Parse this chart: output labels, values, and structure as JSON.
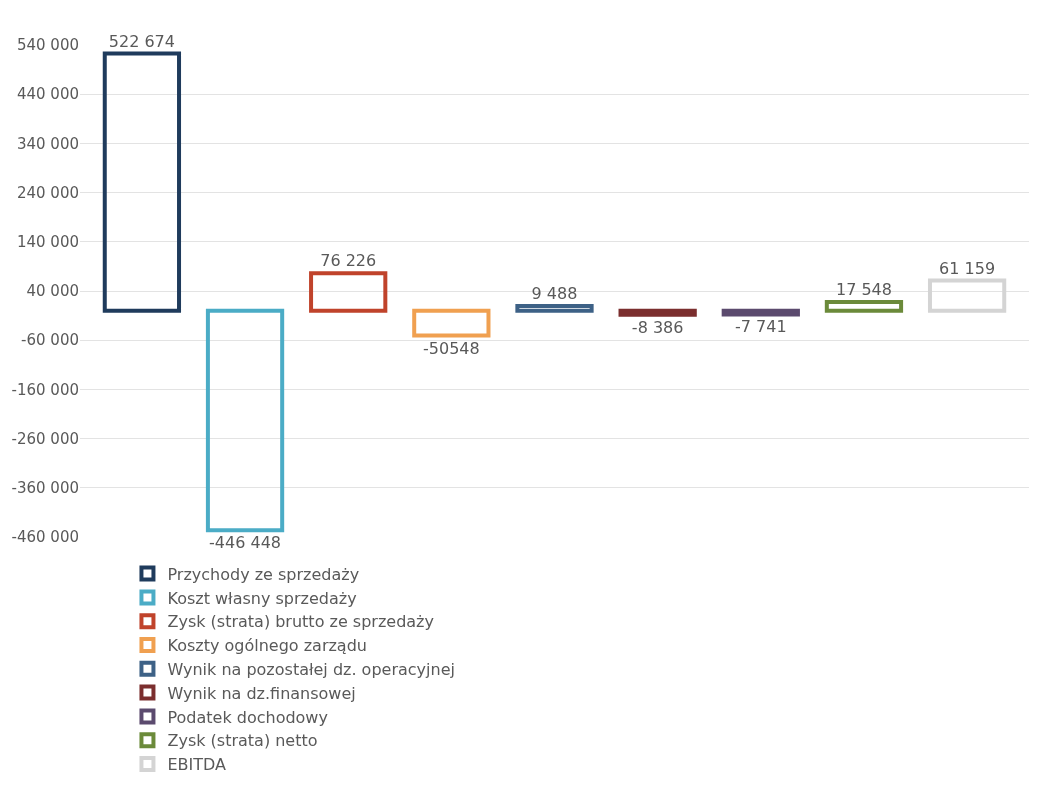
{
  "chart_data": {
    "type": "bar",
    "categories": [
      null,
      null,
      null,
      null,
      null,
      null,
      null,
      null,
      null
    ],
    "ylim": [
      -460000,
      540000
    ],
    "yticks": [
      {
        "value": -460000,
        "label": "-460 000"
      },
      {
        "value": -360000,
        "label": "-360 000"
      },
      {
        "value": -260000,
        "label": "-260 000"
      },
      {
        "value": -160000,
        "label": "-160 000"
      },
      {
        "value": -60000,
        "label": "-60 000"
      },
      {
        "value": 40000,
        "label": "40 000"
      },
      {
        "value": 140000,
        "label": "140 000"
      },
      {
        "value": 240000,
        "label": "240 000"
      },
      {
        "value": 340000,
        "label": "340 000"
      },
      {
        "value": 440000,
        "label": "440 000"
      },
      {
        "value": 540000,
        "label": "540 000"
      }
    ],
    "grid": "y",
    "legend": "bottom",
    "series": [
      {
        "name": "Przychody ze sprzedaży",
        "color": "#1f3b5c",
        "values": [
          522674,
          null,
          null,
          null,
          null,
          null,
          null,
          null,
          null
        ],
        "value_labels": [
          "522 674",
          null,
          null,
          null,
          null,
          null,
          null,
          null,
          null
        ]
      },
      {
        "name": "Koszt własny sprzedaży",
        "color": "#4bacc6",
        "values": [
          null,
          -446448,
          null,
          null,
          null,
          null,
          null,
          null,
          null
        ],
        "value_labels": [
          null,
          "-446 448",
          null,
          null,
          null,
          null,
          null,
          null,
          null
        ]
      },
      {
        "name": "Zysk (strata) brutto ze sprzedaży",
        "color": "#c0432b",
        "values": [
          null,
          null,
          76226,
          null,
          null,
          null,
          null,
          null,
          null
        ],
        "value_labels": [
          null,
          null,
          "76 226",
          null,
          null,
          null,
          null,
          null,
          null
        ]
      },
      {
        "name": "Koszty ogólnego zarządu",
        "color": "#f0a050",
        "values": [
          null,
          null,
          null,
          -50548,
          null,
          null,
          null,
          null,
          null
        ],
        "value_labels": [
          null,
          null,
          null,
          "-50548",
          null,
          null,
          null,
          null,
          null
        ]
      },
      {
        "name": "Wynik na pozostałej dz. operacyjnej",
        "color": "#3d6186",
        "values": [
          null,
          null,
          null,
          null,
          9488,
          null,
          null,
          null,
          null
        ],
        "value_labels": [
          null,
          null,
          null,
          null,
          "9 488",
          null,
          null,
          null,
          null
        ]
      },
      {
        "name": "Wynik na dz.finansowej",
        "color": "#7b2e2e",
        "values": [
          null,
          null,
          null,
          null,
          null,
          -8386,
          null,
          null,
          null
        ],
        "value_labels": [
          null,
          null,
          null,
          null,
          null,
          "-8 386",
          null,
          null,
          null
        ]
      },
      {
        "name": "Podatek dochodowy",
        "color": "#5b4a6e",
        "values": [
          null,
          null,
          null,
          null,
          null,
          null,
          -7741,
          null,
          null
        ],
        "value_labels": [
          null,
          null,
          null,
          null,
          null,
          null,
          "-7 741",
          null,
          null
        ]
      },
      {
        "name": "Zysk (strata) netto",
        "color": "#6b8a3a",
        "values": [
          null,
          null,
          null,
          null,
          null,
          null,
          null,
          17548,
          null
        ],
        "value_labels": [
          null,
          null,
          null,
          null,
          null,
          null,
          null,
          "17 548",
          null
        ]
      },
      {
        "name": "EBITDA",
        "color": "#d4d4d4",
        "values": [
          null,
          null,
          null,
          null,
          null,
          null,
          null,
          null,
          61159
        ],
        "value_labels": [
          null,
          null,
          null,
          null,
          null,
          null,
          null,
          null,
          "61 159"
        ]
      }
    ]
  }
}
